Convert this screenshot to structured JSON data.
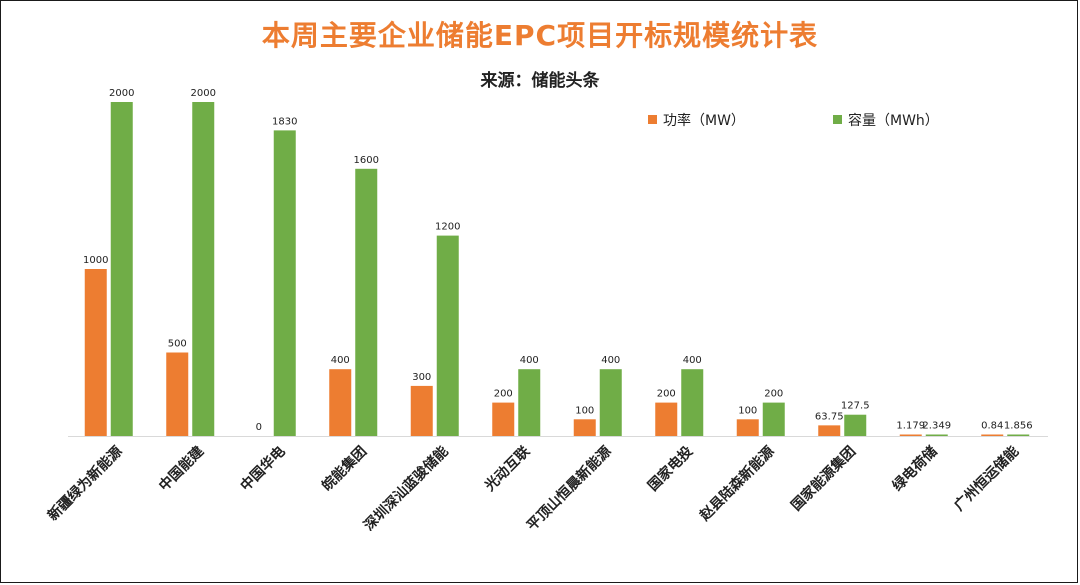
{
  "chart_data": {
    "type": "bar",
    "title": "本周主要企业储能EPC项目开标规模统计表",
    "subtitle": "来源：储能头条",
    "categories": [
      "新疆绿为新能源",
      "中国能建",
      "中国华电",
      "皖能集团",
      "深圳深汕蓝骏储能",
      "光动互联",
      "平顶山恒晨新能源",
      "国家电投",
      "赵县陆森新能源",
      "国家能源集团",
      "绿电荷储",
      "广州恒运储能"
    ],
    "series": [
      {
        "name": "功率（MW）",
        "color": "#ED7D31",
        "values": [
          1000,
          500,
          0,
          400,
          300,
          200,
          100,
          200,
          100,
          63.75,
          1.179,
          0.84
        ]
      },
      {
        "name": "容量（MWh）",
        "color": "#70AD47",
        "values": [
          2000,
          2000,
          1830,
          1600,
          1200,
          400,
          400,
          400,
          200,
          127.5,
          2.349,
          1.856
        ]
      }
    ],
    "ylim": [
      0,
      2000
    ],
    "grid": false,
    "legend": "top-right"
  }
}
